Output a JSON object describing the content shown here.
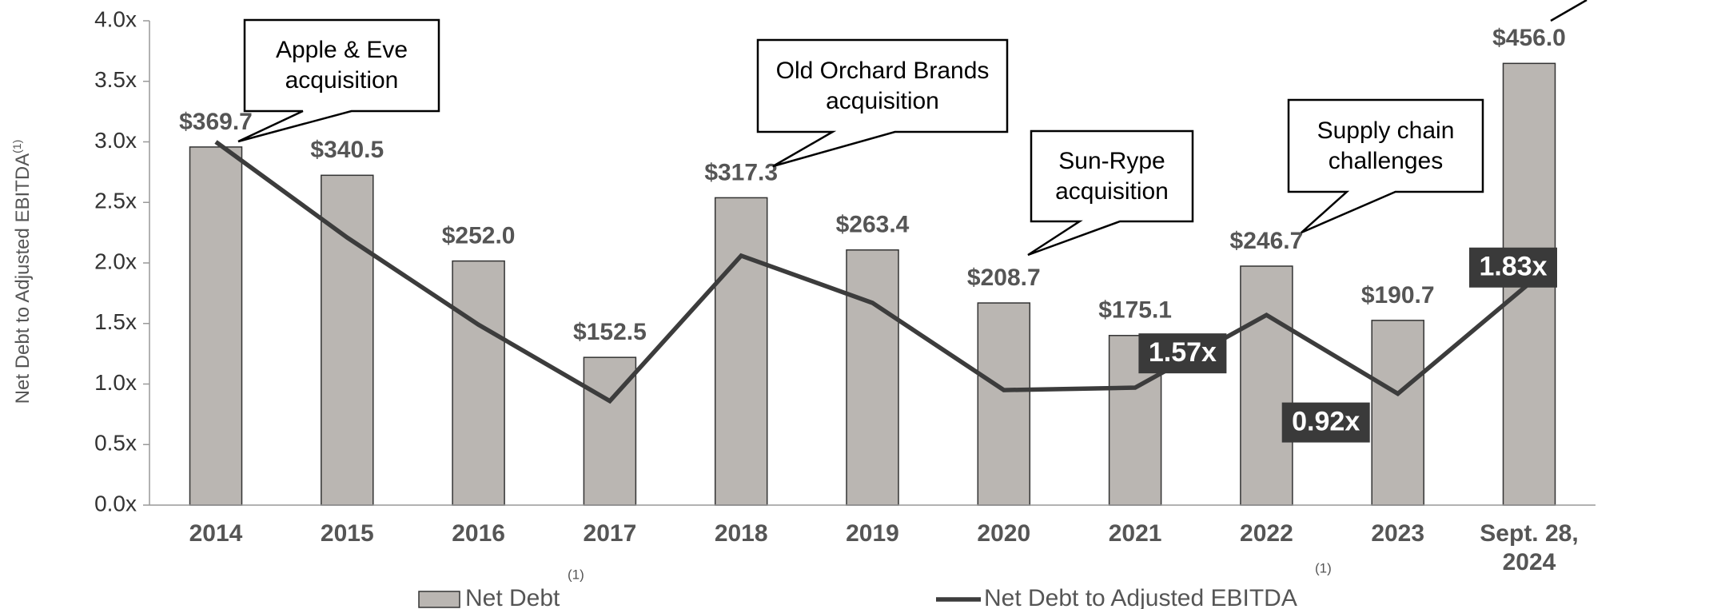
{
  "chart_data": {
    "type": "bar_line",
    "y_axis_label": "Net Debt to Adjusted EBITDA",
    "footnote_marker": "(1)",
    "categories": [
      "2014",
      "2015",
      "2016",
      "2017",
      "2018",
      "2019",
      "2020",
      "2021",
      "2022",
      "2023",
      "Sept. 28, 2024"
    ],
    "series": [
      {
        "name": "Net Debt",
        "type": "bar",
        "axis": "y2",
        "color": "#bab6b2",
        "values": [
          369.7,
          340.5,
          252.0,
          152.5,
          317.3,
          263.4,
          208.7,
          175.1,
          246.7,
          190.7,
          456.0
        ],
        "value_labels": [
          "$369.7",
          "$340.5",
          "$252.0",
          "$152.5",
          "$317.3",
          "$263.4",
          "$208.7",
          "$175.1",
          "$246.7",
          "$190.7",
          "$456.0"
        ]
      },
      {
        "name": "Net Debt to Adjusted EBITDA",
        "type": "line",
        "color": "#3c3c3c",
        "values": [
          3.0,
          2.21,
          1.49,
          0.86,
          2.06,
          1.67,
          0.95,
          0.97,
          1.57,
          0.92,
          1.83
        ],
        "value_labels": [
          null,
          null,
          null,
          null,
          null,
          null,
          null,
          null,
          "1.57x",
          "0.92x",
          "1.83x"
        ]
      }
    ],
    "ylim": [
      0,
      4.0
    ],
    "yticks": [
      {
        "value": 0,
        "label": "0.0x"
      },
      {
        "value": 0.5,
        "label": "0.5x"
      },
      {
        "value": 1.0,
        "label": "1.0x"
      },
      {
        "value": 1.5,
        "label": "1.5x"
      },
      {
        "value": 2.0,
        "label": "2.0x"
      },
      {
        "value": 2.5,
        "label": "2.5x"
      },
      {
        "value": 3.0,
        "label": "3.0x"
      },
      {
        "value": 3.5,
        "label": "3.5x"
      },
      {
        "value": 4.0,
        "label": "4.0x"
      }
    ],
    "y2lim": [
      0,
      500
    ],
    "annotations": [
      {
        "text": "Apple & Eve acquisition"
      },
      {
        "text": "Old Orchard Brands acquisition"
      },
      {
        "text": "Sun-Rype acquisition"
      },
      {
        "text": "Supply chain challenges"
      }
    ]
  }
}
